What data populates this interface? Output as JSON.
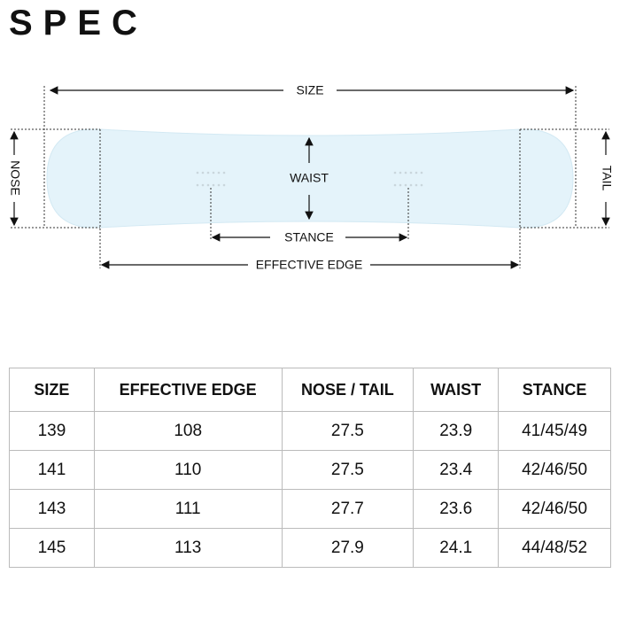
{
  "header": {
    "title": "SPEC"
  },
  "diagram": {
    "size": "SIZE",
    "nose": "NOSE",
    "tail": "TAIL",
    "waist": "WAIST",
    "stance": "STANCE",
    "effective_edge": "EFFECTIVE EDGE"
  },
  "table": {
    "columns": [
      "SIZE",
      "EFFECTIVE EDGE",
      "NOSE / TAIL",
      "WAIST",
      "STANCE"
    ],
    "rows": [
      [
        "139",
        "108",
        "27.5",
        "23.9",
        "41/45/49"
      ],
      [
        "141",
        "110",
        "27.5",
        "23.4",
        "42/46/50"
      ],
      [
        "143",
        "111",
        "27.7",
        "23.6",
        "42/46/50"
      ],
      [
        "145",
        "113",
        "27.9",
        "24.1",
        "44/48/52"
      ]
    ]
  }
}
